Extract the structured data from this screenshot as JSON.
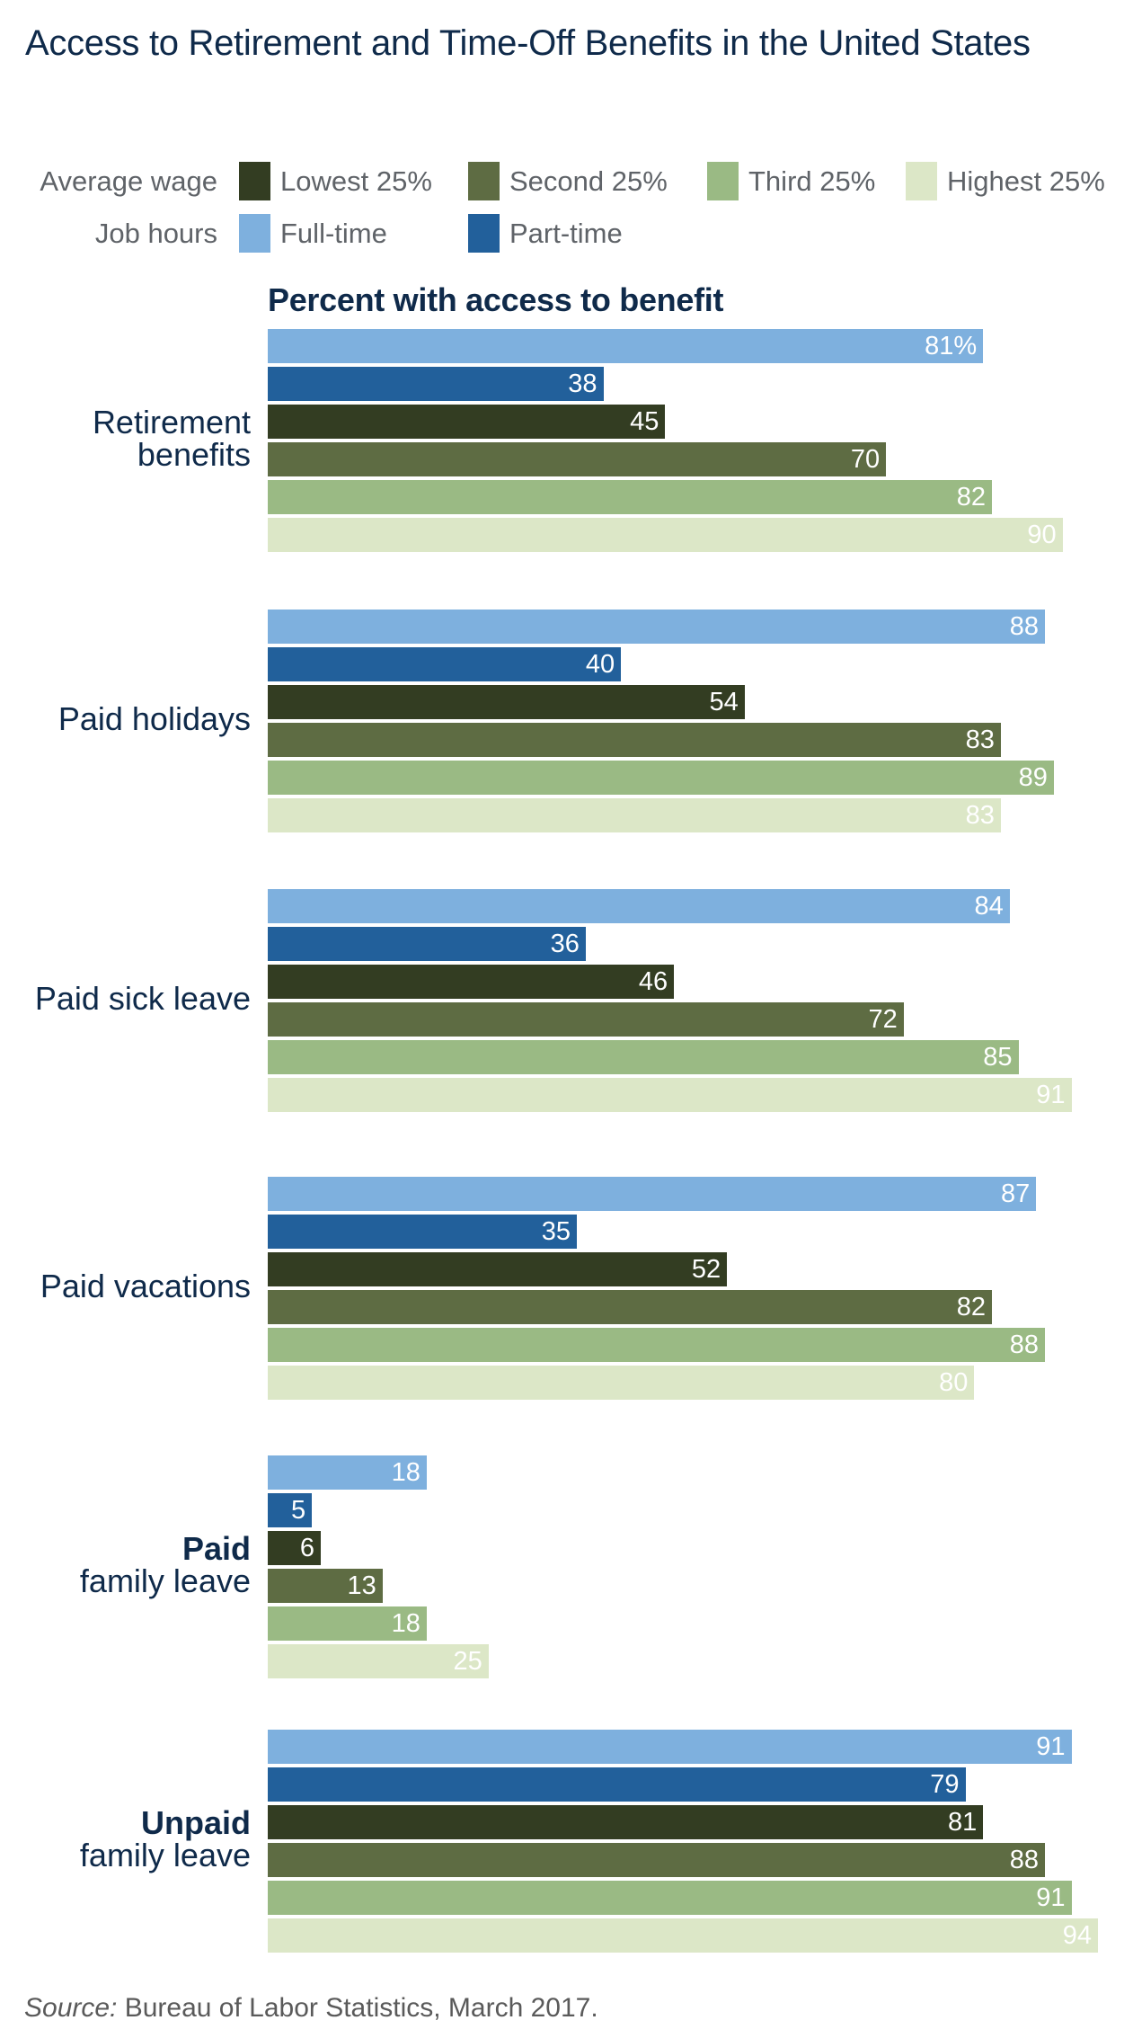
{
  "chart_data": {
    "type": "bar",
    "orientation": "horizontal",
    "title": "Access to Retirement and Time-Off Benefits in the United States",
    "xlabel": "Percent with access to benefit",
    "ylabel": "",
    "xlim": [
      0,
      100
    ],
    "grid": false,
    "value_suffix_first": "%",
    "legend_groups": [
      {
        "heading": "Average wage",
        "entries": [
          {
            "name": "Lowest 25%",
            "color": "#333d22"
          },
          {
            "name": "Second 25%",
            "color": "#5e6c43"
          },
          {
            "name": "Third 25%",
            "color": "#9aba84"
          },
          {
            "name": "Highest 25%",
            "color": "#dce7c7"
          }
        ]
      },
      {
        "heading": "Job hours",
        "entries": [
          {
            "name": "Full-time",
            "color": "#7eb0de"
          },
          {
            "name": "Part-time",
            "color": "#22609b"
          }
        ]
      }
    ],
    "categories": [
      {
        "bold": "",
        "text": "Retirement\nbenefits"
      },
      {
        "bold": "",
        "text": "Paid holidays"
      },
      {
        "bold": "",
        "text": "Paid sick leave"
      },
      {
        "bold": "",
        "text": "Paid vacations"
      },
      {
        "bold": "Paid",
        "text": "family leave"
      },
      {
        "bold": "Unpaid",
        "text": "family leave"
      }
    ],
    "series": [
      {
        "name": "Full-time",
        "color": "#7eb0de",
        "values": [
          81,
          88,
          84,
          87,
          18,
          91
        ]
      },
      {
        "name": "Part-time",
        "color": "#22609b",
        "values": [
          38,
          40,
          36,
          35,
          5,
          79
        ]
      },
      {
        "name": "Lowest 25%",
        "color": "#333d22",
        "values": [
          45,
          54,
          46,
          52,
          6,
          81
        ]
      },
      {
        "name": "Second 25%",
        "color": "#5e6c43",
        "values": [
          70,
          83,
          72,
          82,
          13,
          88
        ]
      },
      {
        "name": "Third 25%",
        "color": "#9aba84",
        "values": [
          82,
          89,
          85,
          88,
          18,
          91
        ]
      },
      {
        "name": "Highest 25%",
        "color": "#dce7c7",
        "values": [
          90,
          83,
          91,
          80,
          25,
          94
        ]
      }
    ],
    "source_prefix": "Source:",
    "source_text": " Bureau of Labor Statistics, March 2017."
  }
}
